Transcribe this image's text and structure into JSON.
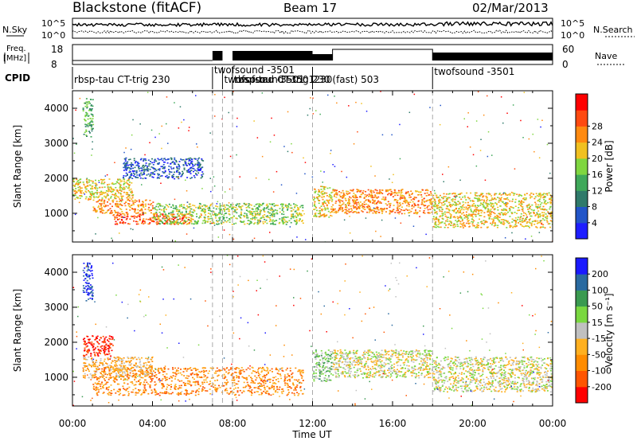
{
  "header": {
    "station": "Blackstone (fitACF)",
    "beam": "Beam 17",
    "date": "02/Mar/2013"
  },
  "top_panel": {
    "nsky_label": "N.Sky",
    "nsearch_label": "N.Search",
    "left_ticks": [
      "10^5",
      "10^0"
    ],
    "right_ticks": [
      "10^5",
      "10^0"
    ],
    "freq_label_1": "Freq.",
    "freq_label_2": "[MHz]",
    "freq_ticks": [
      "18",
      "8"
    ],
    "nave_label": "Nave",
    "nave_ticks": [
      "60",
      "0"
    ],
    "cpid_label": "CPID"
  },
  "cpid_segments": [
    {
      "label": "rbsp-tau CT-trig 230",
      "start_hour": 0.0
    },
    {
      "label": "twofsound -3501",
      "start_hour": 7.0
    },
    {
      "label": "twofsound -3501",
      "start_hour": 7.5
    },
    {
      "label": "twofsound -3501",
      "start_hour": 8.0
    },
    {
      "label": "rbsp-tau CT-trig 230",
      "start_hour": 8.0
    },
    {
      "label": "230(fast) 503",
      "start_hour": 12.0
    },
    {
      "label": "twofsound -3501",
      "start_hour": 18.0
    }
  ],
  "colors": {
    "power_scale": [
      "#1e1eff",
      "#2255c8",
      "#2f7a6a",
      "#3fa85a",
      "#7fd640",
      "#f0c020",
      "#ff8a10",
      "#ff4a10",
      "#ff0000"
    ],
    "velocity_scale": [
      "#ff0000",
      "#ff5500",
      "#ff8c00",
      "#ffb020",
      "#c0c0c0",
      "#7ad840",
      "#3a9a50",
      "#2a6aa0",
      "#1a1aff"
    ]
  },
  "chart_data": [
    {
      "type": "heatmap",
      "title": "Power",
      "ylabel": "Slant Range [km]",
      "xlabel": "Time UT",
      "x_range_hours": [
        0,
        24
      ],
      "ylim": [
        180,
        4500
      ],
      "y_ticks": [
        1000,
        2000,
        3000,
        4000
      ],
      "x_ticks": [
        "00:00",
        "04:00",
        "08:00",
        "12:00",
        "16:00",
        "20:00",
        "00:00"
      ],
      "colorbar_label": "Power [dB]",
      "colorbar_ticks": [
        "4",
        "8",
        "12",
        "16",
        "20",
        "24",
        "28"
      ],
      "mode_change_hours": [
        7.0,
        7.5,
        8.0,
        12.0,
        18.0
      ],
      "echo_regions": [
        {
          "t0": 0.5,
          "t1": 1.0,
          "r0": 3200,
          "r1": 4300,
          "level": 3
        },
        {
          "t0": 0.0,
          "t1": 3.0,
          "r0": 1400,
          "r1": 2000,
          "level": 5
        },
        {
          "t0": 1.0,
          "t1": 4.0,
          "r0": 1000,
          "r1": 1400,
          "level": 6
        },
        {
          "t0": 2.0,
          "t1": 6.0,
          "r0": 700,
          "r1": 1000,
          "level": 7
        },
        {
          "t0": 4.0,
          "t1": 11.5,
          "r0": 700,
          "r1": 1300,
          "level": 4
        },
        {
          "t0": 2.5,
          "t1": 6.5,
          "r0": 2000,
          "r1": 2600,
          "level": 1
        },
        {
          "t0": 12.0,
          "t1": 13.0,
          "r0": 900,
          "r1": 1800,
          "level": 5
        },
        {
          "t0": 13.0,
          "t1": 18.0,
          "r0": 1000,
          "r1": 1700,
          "level": 6
        },
        {
          "t0": 18.0,
          "t1": 24.0,
          "r0": 600,
          "r1": 1600,
          "level": 5
        }
      ]
    },
    {
      "type": "heatmap",
      "title": "Velocity",
      "ylabel": "Slant Range [km]",
      "xlabel": "Time UT",
      "x_range_hours": [
        0,
        24
      ],
      "ylim": [
        180,
        4500
      ],
      "y_ticks": [
        1000,
        2000,
        3000,
        4000
      ],
      "x_ticks": [
        "00:00",
        "04:00",
        "08:00",
        "12:00",
        "16:00",
        "20:00",
        "00:00"
      ],
      "colorbar_label": "Velocity [m s⁻¹]",
      "colorbar_ticks": [
        "200",
        "100",
        "50",
        "15",
        "-15",
        "-50",
        "-100",
        "-200"
      ],
      "mode_change_hours": [
        7.0,
        7.5,
        8.0,
        12.0,
        18.0
      ],
      "echo_regions": [
        {
          "t0": 0.5,
          "t1": 1.0,
          "r0": 3200,
          "r1": 4300,
          "level": 8
        },
        {
          "t0": 0.5,
          "t1": 2.0,
          "r0": 1600,
          "r1": 2200,
          "level": 0
        },
        {
          "t0": 0.5,
          "t1": 4.0,
          "r0": 1000,
          "r1": 1600,
          "level": 3
        },
        {
          "t0": 1.0,
          "t1": 11.5,
          "r0": 500,
          "r1": 1300,
          "level": 2
        },
        {
          "t0": 12.0,
          "t1": 13.0,
          "r0": 900,
          "r1": 1800,
          "level": 5
        },
        {
          "t0": 13.0,
          "t1": 18.0,
          "r0": 1000,
          "r1": 1800,
          "level": 4
        },
        {
          "t0": 18.0,
          "t1": 24.0,
          "r0": 600,
          "r1": 1600,
          "level": 4
        }
      ]
    }
  ]
}
